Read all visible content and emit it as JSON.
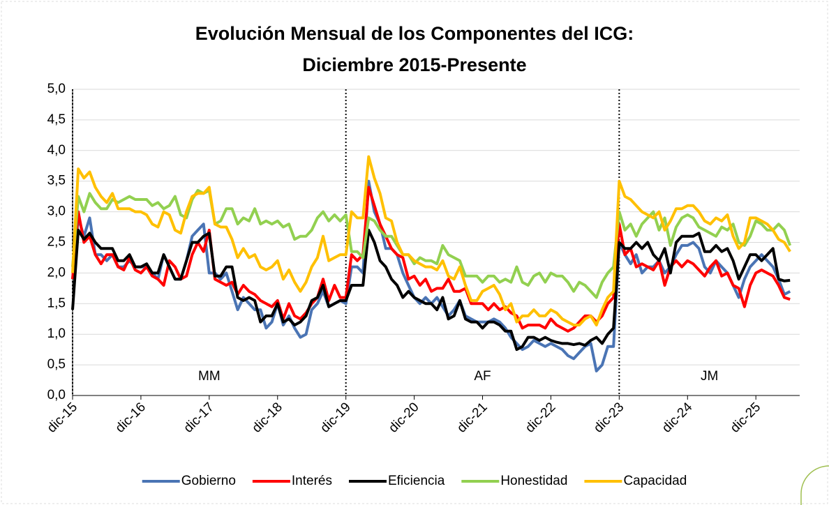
{
  "chart_data": {
    "type": "line",
    "title": [
      "Evolución Mensual de los Componentes del ICG:",
      "Diciembre 2015-Presente"
    ],
    "categories": [
      "dic-15",
      null,
      null,
      null,
      null,
      null,
      null,
      null,
      null,
      null,
      null,
      null,
      "dic-16",
      null,
      null,
      null,
      null,
      null,
      null,
      null,
      null,
      null,
      null,
      null,
      "dic-17",
      null,
      null,
      null,
      null,
      null,
      null,
      null,
      null,
      null,
      null,
      null,
      "dic-18",
      null,
      null,
      null,
      null,
      null,
      null,
      null,
      null,
      null,
      null,
      null,
      "dic-19",
      null,
      null,
      null,
      null,
      null,
      null,
      null,
      null,
      null,
      null,
      null,
      "dic-20",
      null,
      null,
      null,
      null,
      null,
      null,
      null,
      null,
      null,
      null,
      null,
      "dic-21",
      null,
      null,
      null,
      null,
      null,
      null,
      null,
      null,
      null,
      null,
      null,
      "dic-22",
      null,
      null,
      null,
      null,
      null,
      null,
      null,
      null,
      null,
      null,
      null,
      "dic-23",
      null,
      null,
      null,
      null,
      null,
      null,
      null,
      null,
      null,
      null,
      null,
      "dic-24",
      null,
      null,
      null,
      null,
      null,
      null,
      null,
      null,
      null,
      null,
      null,
      "dic-25",
      null,
      null,
      null,
      null,
      null,
      null
    ],
    "ylim": [
      0,
      5
    ],
    "yticks": [
      {
        "value": 0,
        "label": "0,0"
      },
      {
        "value": 0.5,
        "label": "0,5"
      },
      {
        "value": 1,
        "label": "1,0"
      },
      {
        "value": 1.5,
        "label": "1,5"
      },
      {
        "value": 2,
        "label": "2,0"
      },
      {
        "value": 2.5,
        "label": "2,5"
      },
      {
        "value": 3,
        "label": "3,0"
      },
      {
        "value": 3.5,
        "label": "3,5"
      },
      {
        "value": 4,
        "label": "4,0"
      },
      {
        "value": 4.5,
        "label": "4,5"
      },
      {
        "value": 5,
        "label": "5,0"
      }
    ],
    "grid": true,
    "legend": "bottom",
    "annotations": [
      {
        "text": "MM",
        "start": "dic-15"
      },
      {
        "text": "AF",
        "start": "dic-19"
      },
      {
        "text": "JM",
        "start": "dic-23"
      }
    ],
    "series": [
      {
        "name": "Gobierno",
        "color": "#4a74b4",
        "values": [
          1.9,
          2.9,
          2.6,
          2.9,
          2.3,
          2.3,
          2.2,
          2.3,
          2.1,
          2.1,
          2.2,
          2.1,
          2.1,
          2.1,
          2.0,
          1.9,
          2.3,
          2.1,
          1.9,
          1.9,
          2.2,
          2.6,
          2.7,
          2.8,
          2.0,
          2.0,
          1.9,
          2.0,
          1.7,
          1.4,
          1.6,
          1.5,
          1.4,
          1.4,
          1.1,
          1.2,
          1.5,
          1.15,
          1.3,
          1.1,
          0.95,
          1.0,
          1.4,
          1.5,
          1.7,
          1.45,
          1.5,
          1.55,
          1.5,
          2.1,
          2.1,
          2.0,
          3.5,
          3.0,
          2.8,
          2.4,
          2.4,
          2.3,
          2.0,
          1.8,
          1.6,
          1.5,
          1.6,
          1.5,
          1.6,
          1.45,
          1.3,
          1.4,
          1.55,
          1.3,
          1.25,
          1.2,
          1.2,
          1.2,
          1.25,
          1.2,
          1.1,
          0.95,
          0.85,
          0.75,
          0.8,
          0.9,
          0.85,
          0.8,
          0.85,
          0.8,
          0.75,
          0.65,
          0.6,
          0.7,
          0.8,
          0.85,
          0.4,
          0.5,
          0.8,
          0.8,
          2.5,
          2.3,
          2.15,
          2.3,
          2.0,
          2.1,
          2.1,
          2.2,
          2.0,
          2.1,
          2.3,
          2.45,
          2.45,
          2.5,
          2.4,
          2.1,
          2.0,
          2.2,
          2.1,
          2.0,
          1.8,
          1.6,
          1.9,
          2.1,
          2.2,
          2.3,
          2.2,
          2.1,
          1.9,
          1.65,
          1.7
        ]
      },
      {
        "name": "Interés",
        "color": "#ff0000",
        "values": [
          1.9,
          3.0,
          2.5,
          2.6,
          2.3,
          2.15,
          2.3,
          2.3,
          2.1,
          2.05,
          2.25,
          2.05,
          2.0,
          2.1,
          1.95,
          1.9,
          1.8,
          2.2,
          2.1,
          1.9,
          1.95,
          2.3,
          2.5,
          2.35,
          2.7,
          1.9,
          1.85,
          1.8,
          1.85,
          1.65,
          1.8,
          1.7,
          1.65,
          1.55,
          1.5,
          1.45,
          1.55,
          1.25,
          1.5,
          1.3,
          1.25,
          1.35,
          1.5,
          1.6,
          1.9,
          1.55,
          1.8,
          1.6,
          1.6,
          2.3,
          2.2,
          2.3,
          3.4,
          3.1,
          2.8,
          2.6,
          2.4,
          2.3,
          2.25,
          1.9,
          1.95,
          1.8,
          1.9,
          1.7,
          1.75,
          1.75,
          1.9,
          1.7,
          1.7,
          1.75,
          1.5,
          1.5,
          1.5,
          1.4,
          1.5,
          1.4,
          1.45,
          1.35,
          1.3,
          1.1,
          1.15,
          1.15,
          1.15,
          1.1,
          1.25,
          1.15,
          1.1,
          1.05,
          1.1,
          1.2,
          1.3,
          1.3,
          1.2,
          1.3,
          1.5,
          1.6,
          2.8,
          2.3,
          2.4,
          2.1,
          2.15,
          2.1,
          2.05,
          2.2,
          1.8,
          2.1,
          2.2,
          2.1,
          2.2,
          2.15,
          2.05,
          1.95,
          2.1,
          2.2,
          1.95,
          2.0,
          1.8,
          1.75,
          1.45,
          1.8,
          2.0,
          2.05,
          2.0,
          1.95,
          1.8,
          1.6,
          1.57
        ]
      },
      {
        "name": "Eficiencia",
        "color": "#000000",
        "values": [
          1.4,
          2.7,
          2.55,
          2.65,
          2.5,
          2.4,
          2.4,
          2.4,
          2.2,
          2.2,
          2.3,
          2.1,
          2.1,
          2.15,
          2.0,
          2.0,
          2.3,
          2.1,
          1.9,
          1.9,
          2.2,
          2.5,
          2.5,
          2.6,
          2.65,
          1.95,
          1.95,
          2.1,
          2.1,
          1.6,
          1.55,
          1.6,
          1.55,
          1.2,
          1.3,
          1.3,
          1.5,
          1.2,
          1.25,
          1.15,
          1.2,
          1.3,
          1.55,
          1.6,
          1.8,
          1.45,
          1.5,
          1.55,
          1.55,
          1.8,
          1.8,
          1.8,
          2.7,
          2.5,
          2.2,
          2.1,
          1.9,
          1.8,
          1.6,
          1.7,
          1.6,
          1.55,
          1.5,
          1.5,
          1.4,
          1.6,
          1.25,
          1.3,
          1.55,
          1.25,
          1.2,
          1.2,
          1.1,
          1.2,
          1.2,
          1.15,
          1.05,
          1.05,
          0.75,
          0.8,
          0.95,
          0.95,
          0.9,
          0.95,
          0.9,
          0.87,
          0.85,
          0.85,
          0.83,
          0.85,
          0.82,
          0.9,
          0.95,
          0.85,
          1.0,
          1.1,
          2.5,
          2.4,
          2.4,
          2.5,
          2.4,
          2.5,
          2.3,
          2.2,
          2.4,
          2.0,
          2.5,
          2.6,
          2.6,
          2.6,
          2.65,
          2.35,
          2.35,
          2.45,
          2.35,
          2.4,
          2.2,
          1.9,
          2.1,
          2.3,
          2.3,
          2.2,
          2.3,
          2.4,
          1.9,
          1.87,
          1.88
        ]
      },
      {
        "name": "Honestidad",
        "color": "#92d050",
        "values": [
          2.1,
          3.25,
          3.0,
          3.3,
          3.15,
          3.05,
          3.05,
          3.2,
          3.15,
          3.2,
          3.25,
          3.2,
          3.2,
          3.2,
          3.1,
          3.15,
          3.05,
          3.1,
          3.25,
          2.95,
          2.9,
          3.2,
          3.35,
          3.3,
          3.35,
          2.8,
          2.85,
          3.05,
          3.05,
          2.8,
          2.9,
          2.85,
          3.05,
          2.8,
          2.85,
          2.8,
          2.85,
          2.75,
          2.8,
          2.55,
          2.6,
          2.6,
          2.7,
          2.9,
          3.0,
          2.85,
          2.95,
          2.85,
          2.95,
          2.35,
          2.35,
          2.25,
          2.9,
          2.85,
          2.7,
          2.6,
          2.6,
          2.45,
          2.3,
          2.3,
          2.15,
          2.25,
          2.2,
          2.2,
          2.15,
          2.45,
          2.3,
          2.25,
          2.2,
          1.95,
          1.95,
          1.95,
          1.85,
          1.95,
          1.95,
          1.85,
          1.9,
          1.85,
          2.1,
          1.85,
          1.8,
          1.95,
          2.0,
          1.85,
          2.0,
          1.95,
          1.95,
          1.85,
          1.7,
          1.85,
          1.8,
          1.7,
          1.6,
          1.85,
          2.0,
          2.1,
          3.0,
          2.7,
          2.8,
          2.6,
          2.8,
          2.9,
          3.0,
          2.7,
          2.9,
          2.45,
          2.75,
          2.9,
          2.95,
          2.9,
          2.75,
          2.7,
          2.65,
          2.6,
          2.75,
          2.7,
          2.8,
          2.5,
          2.45,
          2.6,
          2.85,
          2.8,
          2.7,
          2.7,
          2.8,
          2.7,
          2.45
        ]
      },
      {
        "name": "Capacidad",
        "color": "#ffc000",
        "values": [
          2.0,
          3.7,
          3.55,
          3.65,
          3.4,
          3.25,
          3.15,
          3.3,
          3.05,
          3.05,
          3.05,
          3.0,
          3.0,
          2.95,
          2.8,
          2.75,
          3.0,
          2.95,
          2.7,
          2.65,
          3.0,
          3.25,
          3.3,
          3.3,
          3.4,
          2.8,
          2.75,
          2.75,
          2.55,
          2.25,
          2.4,
          2.25,
          2.3,
          2.1,
          2.05,
          2.1,
          2.2,
          1.9,
          2.05,
          1.85,
          1.7,
          1.85,
          2.1,
          2.25,
          2.6,
          2.2,
          2.25,
          2.3,
          2.3,
          3.0,
          2.9,
          2.9,
          3.9,
          3.55,
          3.3,
          2.9,
          2.85,
          2.5,
          2.3,
          2.3,
          2.2,
          2.15,
          2.1,
          2.1,
          2.05,
          2.2,
          1.95,
          1.9,
          2.1,
          1.8,
          1.55,
          1.55,
          1.7,
          1.75,
          1.8,
          1.65,
          1.4,
          1.5,
          1.2,
          1.3,
          1.3,
          1.4,
          1.3,
          1.3,
          1.4,
          1.35,
          1.25,
          1.2,
          1.15,
          1.15,
          1.25,
          1.3,
          1.15,
          1.4,
          1.6,
          1.7,
          3.5,
          3.25,
          3.2,
          3.1,
          3.0,
          2.95,
          2.9,
          3.0,
          2.7,
          2.85,
          3.05,
          3.05,
          3.1,
          3.1,
          3.0,
          2.85,
          2.8,
          2.9,
          2.85,
          2.95,
          2.6,
          2.4,
          2.5,
          2.9,
          2.9,
          2.85,
          2.8,
          2.7,
          2.55,
          2.5,
          2.35
        ]
      }
    ]
  }
}
